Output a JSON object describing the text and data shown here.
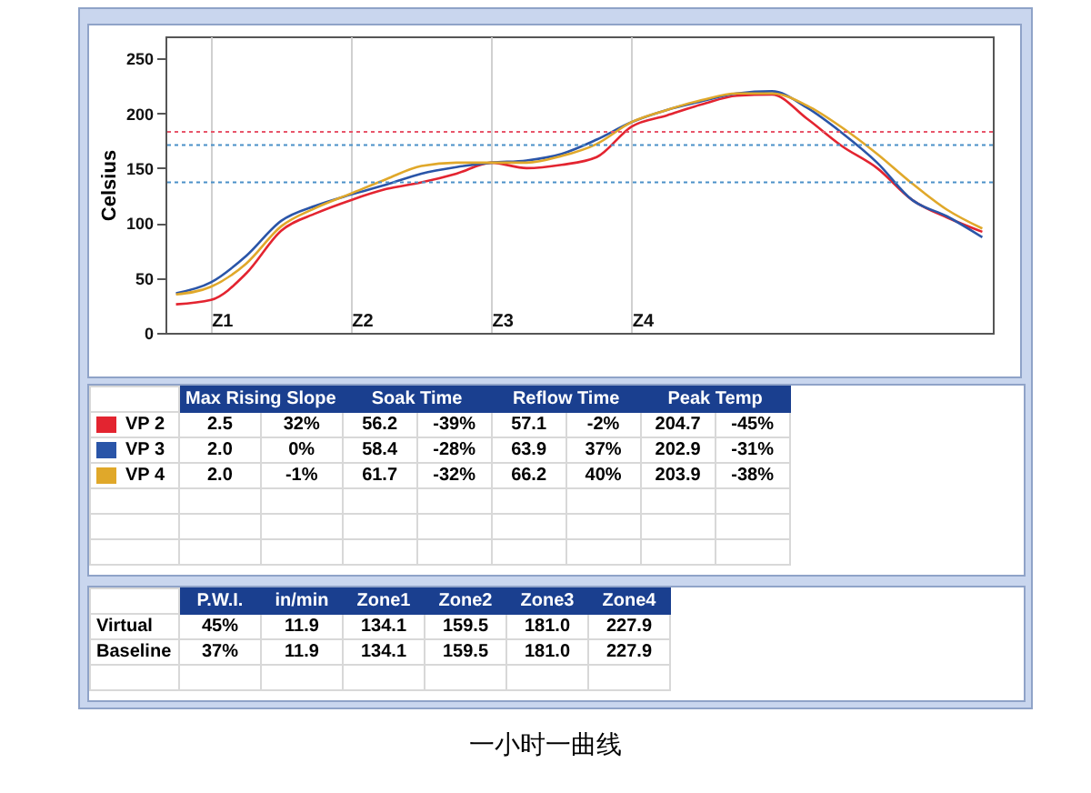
{
  "chart_data": [
    {
      "type": "line",
      "ylabel": "Celsius",
      "ylim": [
        0,
        270
      ],
      "yticks": [
        0,
        50,
        100,
        150,
        200,
        250
      ],
      "grid": "x",
      "line_style": "solid",
      "marker": "none",
      "categories": [
        null,
        "Z1",
        null,
        null,
        null,
        "Z2",
        null,
        null,
        null,
        "Z3",
        null,
        null,
        null,
        "Z4",
        null,
        null,
        null,
        null,
        null,
        null,
        null,
        null,
        null,
        null
      ],
      "series": [
        {
          "name": "VP 2",
          "color": "#e32430",
          "values": [
            26,
            30,
            54,
            93,
            109,
            121,
            131,
            137,
            145,
            155,
            150,
            153,
            160,
            188,
            198,
            208,
            216,
            217,
            195,
            170,
            150,
            121,
            105,
            92
          ]
        },
        {
          "name": "VP 3",
          "color": "#2a55a8",
          "values": [
            36,
            46,
            70,
            102,
            116,
            126,
            135,
            145,
            151,
            155,
            157,
            163,
            176,
            192,
            203,
            211,
            218,
            220,
            205,
            182,
            155,
            121,
            106,
            87
          ]
        },
        {
          "name": "VP 4",
          "color": "#e0a82a",
          "values": [
            35,
            42,
            63,
            97,
            114,
            127,
            140,
            152,
            155,
            155,
            155,
            161,
            172,
            192,
            203,
            212,
            218,
            218,
            207,
            187,
            163,
            136,
            112,
            95
          ]
        }
      ],
      "ref_lines": [
        {
          "axis": "y",
          "value": 183,
          "color": "#e8556a",
          "line_style": "dotted"
        },
        {
          "axis": "y",
          "value": 171,
          "color": "#4a90c8",
          "line_style": "dotted"
        },
        {
          "axis": "y",
          "value": 137,
          "color": "#4a90c8",
          "line_style": "dotted"
        }
      ],
      "annotations": [
        "一小时一曲线"
      ]
    },
    {
      "type": "other",
      "categories": [
        "Max Rising Slope",
        "Soak Time",
        "Reflow Time",
        "Peak Temp"
      ],
      "cell_labels": [
        [
          "2.5",
          "32%",
          "56.2",
          "-39%",
          "57.1",
          "-2%",
          "204.7",
          "-45%"
        ],
        [
          "2.0",
          "0%",
          "58.4",
          "-28%",
          "63.9",
          "37%",
          "202.9",
          "-31%"
        ],
        [
          "2.0",
          "-1%",
          "61.7",
          "-32%",
          "66.2",
          "40%",
          "203.9",
          "-38%"
        ]
      ]
    },
    {
      "type": "other",
      "categories": [
        "P.W.I.",
        "in/min",
        "Zone1",
        "Zone2",
        "Zone3",
        "Zone4"
      ],
      "y_categories": [
        "Virtual",
        "Baseline"
      ],
      "cell_labels": [
        [
          "45%",
          "11.9",
          "134.1",
          "159.5",
          "181.0",
          "227.9"
        ],
        [
          "37%",
          "11.9",
          "134.1",
          "159.5",
          "181.0",
          "227.9"
        ]
      ]
    }
  ]
}
